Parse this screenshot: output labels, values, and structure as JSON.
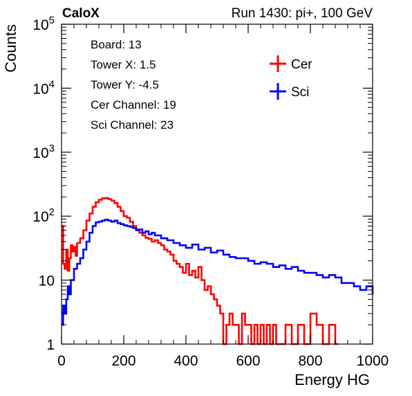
{
  "header": {
    "left": "CaloX",
    "right": "Run 1430: pi+, 100 GeV"
  },
  "info_box": {
    "lines": [
      "Board: 13",
      "Tower X: 1.5",
      "Tower Y: -4.5",
      "Cer Channel: 19",
      "Sci Channel: 23"
    ]
  },
  "chart_data": {
    "type": "line",
    "title": "",
    "xlabel": "Energy HG",
    "ylabel": "Counts",
    "xlim": [
      0,
      1000
    ],
    "ylim": [
      1,
      100000
    ],
    "y_scale": "log",
    "grid": false,
    "legend_position": "top-right",
    "x_ticks": [
      0,
      200,
      400,
      600,
      800,
      1000
    ],
    "y_ticks": [
      {
        "value": 1,
        "label": "1"
      },
      {
        "value": 10,
        "label": "10"
      },
      {
        "value": 100,
        "label": "10",
        "exp": "2"
      },
      {
        "value": 1000,
        "label": "10",
        "exp": "3"
      },
      {
        "value": 10000,
        "label": "10",
        "exp": "4"
      },
      {
        "value": 100000,
        "label": "10",
        "exp": "5"
      }
    ],
    "series": [
      {
        "name": "Cer",
        "color": "#ff0000",
        "x": [
          0,
          5,
          10,
          15,
          20,
          25,
          30,
          35,
          40,
          45,
          50,
          60,
          70,
          80,
          90,
          100,
          110,
          120,
          130,
          140,
          150,
          160,
          170,
          180,
          190,
          200,
          210,
          220,
          230,
          240,
          250,
          260,
          270,
          280,
          290,
          300,
          310,
          320,
          330,
          340,
          350,
          360,
          370,
          380,
          390,
          400,
          410,
          420,
          430,
          440,
          450,
          460,
          470,
          480,
          490,
          500,
          510,
          520,
          530,
          540,
          550,
          560,
          570,
          580,
          590,
          600,
          610,
          620,
          630,
          640,
          650,
          660,
          670,
          680,
          690,
          700,
          720,
          740,
          760,
          780,
          800,
          820,
          840,
          860,
          880
        ],
        "y": [
          70,
          18,
          15,
          30,
          14,
          22,
          35,
          28,
          33,
          24,
          38,
          45,
          60,
          85,
          110,
          140,
          165,
          180,
          190,
          192,
          185,
          175,
          160,
          140,
          120,
          100,
          95,
          82,
          70,
          62,
          55,
          50,
          46,
          44,
          40,
          42,
          38,
          35,
          30,
          28,
          25,
          20,
          18,
          16,
          13,
          18,
          12,
          14,
          11,
          16,
          10,
          7,
          8,
          6,
          5,
          4,
          3,
          1,
          2,
          3,
          2,
          2,
          1,
          3,
          2,
          2,
          1,
          2,
          1,
          2,
          1,
          2,
          1,
          2,
          1,
          1,
          2,
          1,
          2,
          1,
          3,
          2,
          1,
          2,
          1
        ]
      },
      {
        "name": "Sci",
        "color": "#0000ff",
        "x": [
          0,
          5,
          10,
          15,
          20,
          25,
          30,
          40,
          50,
          60,
          70,
          80,
          90,
          100,
          110,
          120,
          130,
          140,
          150,
          160,
          170,
          180,
          190,
          200,
          210,
          220,
          230,
          240,
          250,
          260,
          270,
          280,
          290,
          300,
          320,
          340,
          360,
          380,
          400,
          420,
          440,
          460,
          480,
          500,
          520,
          540,
          560,
          580,
          600,
          620,
          640,
          660,
          680,
          700,
          720,
          740,
          760,
          780,
          800,
          820,
          840,
          860,
          880,
          900,
          920,
          940,
          960,
          980,
          1000
        ],
        "y": [
          2,
          4,
          3,
          5,
          8,
          6,
          10,
          15,
          18,
          22,
          30,
          40,
          55,
          70,
          80,
          82,
          85,
          88,
          85,
          82,
          85,
          78,
          75,
          72,
          70,
          68,
          65,
          60,
          62,
          55,
          58,
          52,
          55,
          50,
          45,
          42,
          38,
          35,
          32,
          36,
          30,
          32,
          27,
          29,
          25,
          23,
          22,
          22,
          20,
          18,
          19,
          18,
          16,
          17,
          15,
          16,
          14,
          13,
          13,
          12,
          11,
          12,
          11,
          9,
          9,
          8,
          7,
          8,
          6
        ]
      }
    ]
  }
}
